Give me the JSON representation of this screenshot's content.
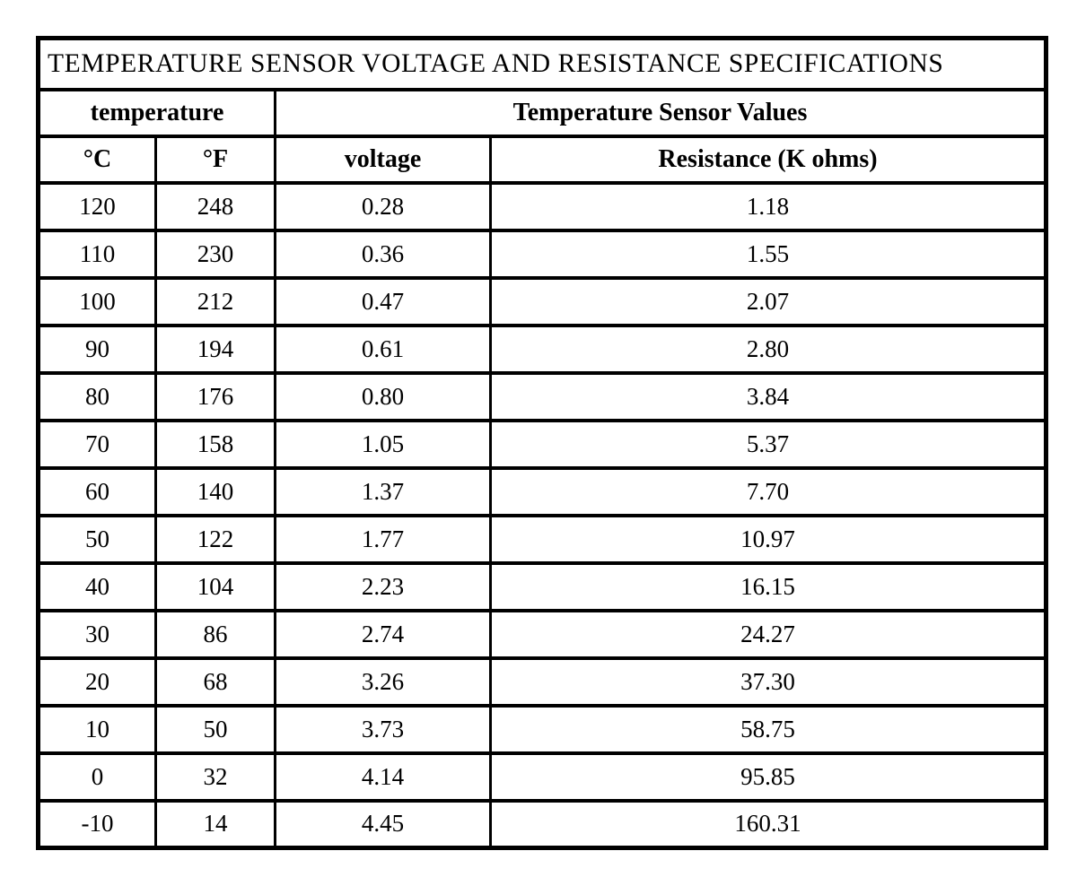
{
  "table": {
    "title": "TEMPERATURE SENSOR VOLTAGE AND RESISTANCE SPECIFICATIONS",
    "group_headers": {
      "temperature": "temperature",
      "sensor_values": "Temperature Sensor Values"
    },
    "column_headers": {
      "celsius": "°C",
      "fahrenheit": "°F",
      "voltage": "voltage",
      "resistance": "Resistance (K ohms)"
    },
    "rows": [
      [
        "120",
        "248",
        "0.28",
        "1.18"
      ],
      [
        "110",
        "230",
        "0.36",
        "1.55"
      ],
      [
        "100",
        "212",
        "0.47",
        "2.07"
      ],
      [
        "90",
        "194",
        "0.61",
        "2.80"
      ],
      [
        "80",
        "176",
        "0.80",
        "3.84"
      ],
      [
        "70",
        "158",
        "1.05",
        "5.37"
      ],
      [
        "60",
        "140",
        "1.37",
        "7.70"
      ],
      [
        "50",
        "122",
        "1.77",
        "10.97"
      ],
      [
        "40",
        "104",
        "2.23",
        "16.15"
      ],
      [
        "30",
        "86",
        "2.74",
        "24.27"
      ],
      [
        "20",
        "68",
        "3.26",
        "37.30"
      ],
      [
        "10",
        "50",
        "3.73",
        "58.75"
      ],
      [
        "0",
        "32",
        "4.14",
        "95.85"
      ],
      [
        "-10",
        "14",
        "4.45",
        "160.31"
      ]
    ],
    "colors": {
      "border": "#000000",
      "background": "#ffffff",
      "text": "#000000"
    }
  }
}
